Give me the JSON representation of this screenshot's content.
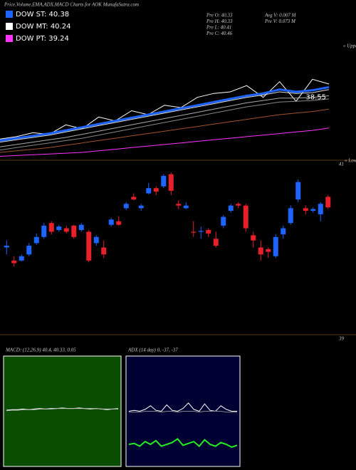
{
  "header": {
    "title": "Price,Volume,EMA,ADX,MACD Charts for AOK MunafaSutra.com",
    "legend": [
      {
        "text": "DOW ST: 40.38",
        "color": "#1e64ff"
      },
      {
        "text": "DOW MT: 40.24",
        "color": "#ffffff"
      },
      {
        "text": "DOW PT: 39.24",
        "color": "#ff33ff"
      }
    ],
    "info_left": [
      "Pre O: 40.33",
      "Pre H: 40.33",
      "Pre L: 40.41",
      "Pre C: 40.46"
    ],
    "info_right": [
      "Avg V: 0.007 M",
      "Pre V: 0.073 M"
    ]
  },
  "chart_data": [
    {
      "type": "line",
      "ylim": [
        37.75,
        39.2
      ],
      "annotation": "38.55",
      "side_note": "« Upper",
      "series": [
        {
          "color": "#ffffff",
          "values": [
            38.02,
            38.05,
            38.1,
            38.08,
            38.2,
            38.15,
            38.3,
            38.25,
            38.38,
            38.33,
            38.45,
            38.42,
            38.55,
            38.6,
            38.62,
            38.7,
            38.55,
            38.75,
            38.5,
            38.78,
            38.72
          ]
        },
        {
          "color": "#1e64ff",
          "values": [
            38.0,
            38.03,
            38.06,
            38.09,
            38.13,
            38.17,
            38.21,
            38.25,
            38.29,
            38.33,
            38.37,
            38.41,
            38.45,
            38.49,
            38.53,
            38.57,
            38.6,
            38.65,
            38.62,
            38.64,
            38.68
          ]
        },
        {
          "color": "#dddddd",
          "values": [
            37.98,
            38.01,
            38.04,
            38.07,
            38.11,
            38.15,
            38.19,
            38.23,
            38.27,
            38.31,
            38.35,
            38.39,
            38.43,
            38.47,
            38.51,
            38.55,
            38.58,
            38.62,
            38.6,
            38.61,
            38.65
          ]
        },
        {
          "color": "#aaaaaa",
          "values": [
            37.92,
            37.95,
            37.98,
            38.01,
            38.04,
            38.08,
            38.12,
            38.16,
            38.2,
            38.24,
            38.28,
            38.32,
            38.36,
            38.4,
            38.44,
            38.48,
            38.51,
            38.54,
            38.54,
            38.55,
            38.57
          ]
        },
        {
          "color": "#888888",
          "values": [
            37.88,
            37.91,
            37.94,
            37.97,
            38.0,
            38.03,
            38.07,
            38.11,
            38.15,
            38.19,
            38.23,
            38.27,
            38.31,
            38.35,
            38.39,
            38.43,
            38.46,
            38.49,
            38.5,
            38.51,
            38.53
          ]
        },
        {
          "color": "#a0522d",
          "values": [
            37.85,
            37.87,
            37.89,
            37.91,
            37.94,
            37.97,
            38.0,
            38.03,
            38.06,
            38.09,
            38.12,
            38.15,
            38.18,
            38.21,
            38.24,
            38.27,
            38.3,
            38.33,
            38.35,
            38.37,
            38.4
          ]
        },
        {
          "color": "#ff33ff",
          "values": [
            37.8,
            37.81,
            37.82,
            37.83,
            37.84,
            37.85,
            37.87,
            37.89,
            37.91,
            37.93,
            37.95,
            37.97,
            37.99,
            38.01,
            38.03,
            38.05,
            38.07,
            38.09,
            38.11,
            38.13,
            38.16
          ]
        }
      ]
    },
    {
      "type": "candlestick",
      "ylim": [
        39,
        41
      ],
      "yticks": [
        39,
        41
      ],
      "side_note": "« Lower",
      "up_color": "#1e64ff",
      "down_color": "#e8202a",
      "open": [
        40.0,
        39.85,
        39.85,
        39.92,
        40.05,
        40.12,
        40.28,
        40.2,
        40.22,
        40.25,
        40.2,
        40.18,
        40.05,
        40.0,
        40.26,
        40.3,
        40.45,
        40.58,
        40.45,
        40.62,
        40.68,
        40.7,
        40.84,
        40.5,
        40.45,
        40.18,
        40.18,
        40.2,
        40.1,
        40.25,
        40.42,
        40.5,
        40.48,
        40.14,
        40.0,
        39.98,
        39.9,
        40.15,
        40.28,
        40.55,
        40.45,
        40.42,
        40.38,
        40.58
      ],
      "high": [
        40.08,
        39.9,
        39.92,
        40.05,
        40.16,
        40.28,
        40.3,
        40.26,
        40.25,
        40.26,
        40.28,
        40.2,
        40.14,
        40.08,
        40.34,
        40.36,
        40.52,
        40.62,
        40.5,
        40.74,
        40.7,
        40.84,
        40.86,
        40.54,
        40.52,
        40.3,
        40.24,
        40.22,
        40.18,
        40.37,
        40.5,
        40.52,
        40.5,
        40.18,
        40.08,
        40.0,
        40.15,
        40.25,
        40.48,
        40.78,
        40.48,
        40.46,
        40.52,
        40.6
      ],
      "low": [
        39.92,
        39.78,
        39.84,
        39.9,
        40.03,
        40.1,
        40.15,
        40.18,
        40.16,
        40.1,
        40.18,
        39.83,
        40.02,
        39.88,
        40.24,
        40.25,
        40.43,
        40.54,
        40.42,
        40.61,
        40.6,
        40.68,
        40.6,
        40.44,
        40.44,
        40.12,
        40.1,
        40.12,
        40.0,
        40.22,
        40.4,
        40.45,
        40.18,
        40.0,
        39.85,
        39.88,
        39.88,
        40.1,
        40.26,
        40.52,
        40.38,
        40.4,
        40.3,
        40.44
      ],
      "close": [
        40.02,
        39.82,
        39.9,
        40.02,
        40.12,
        40.25,
        40.18,
        40.24,
        40.18,
        40.12,
        40.26,
        39.85,
        40.12,
        39.92,
        40.32,
        40.26,
        40.5,
        40.55,
        40.48,
        40.68,
        40.64,
        40.82,
        40.65,
        40.48,
        40.48,
        40.17,
        40.19,
        40.16,
        40.02,
        40.35,
        40.48,
        40.48,
        40.22,
        40.08,
        39.92,
        39.95,
        40.12,
        40.22,
        40.45,
        40.75,
        40.42,
        40.44,
        40.5,
        40.46
      ]
    },
    {
      "type": "line",
      "title": "MACD: (12,26,9) 40.4, 40.33, 0.05",
      "ylim": [
        -1,
        1
      ],
      "background": "#0b4d00",
      "series": [
        {
          "color": "#ffffff",
          "values": [
            0.02,
            0.03,
            0.03,
            0.04,
            0.03,
            0.04,
            0.05,
            0.04,
            0.05,
            0.05,
            0.06,
            0.05,
            0.05,
            0.06,
            0.05,
            0.04,
            0.05,
            0.04,
            0.03,
            0.04,
            0.05
          ]
        },
        {
          "color": "#bbbbbb",
          "values": [
            0.01,
            0.02,
            0.02,
            0.03,
            0.03,
            0.03,
            0.04,
            0.04,
            0.04,
            0.05,
            0.05,
            0.05,
            0.05,
            0.05,
            0.05,
            0.05,
            0.05,
            0.04,
            0.04,
            0.04,
            0.04
          ]
        }
      ]
    },
    {
      "type": "line",
      "title": "ADX (14 day) 0, -37, -37",
      "ylim": [
        -60,
        60
      ],
      "background": "#000033",
      "series": [
        {
          "color": "#ffffff",
          "values": [
            0,
            1,
            0,
            2,
            6,
            1,
            0,
            7,
            1,
            0,
            3,
            9,
            2,
            0,
            8,
            1,
            0,
            6,
            2,
            0,
            0
          ]
        },
        {
          "color": "#888888",
          "values": [
            -1,
            -1,
            -1,
            0,
            0,
            0,
            -1,
            0,
            0,
            -1,
            0,
            0,
            0,
            -1,
            0,
            0,
            0,
            0,
            -1,
            -1,
            -1
          ]
        },
        {
          "color": "#22ee22",
          "values": [
            -36,
            -35,
            -38,
            -33,
            -36,
            -32,
            -38,
            -36,
            -34,
            -30,
            -37,
            -35,
            -33,
            -38,
            -31,
            -36,
            -38,
            -34,
            -36,
            -39,
            -37
          ]
        }
      ]
    }
  ]
}
